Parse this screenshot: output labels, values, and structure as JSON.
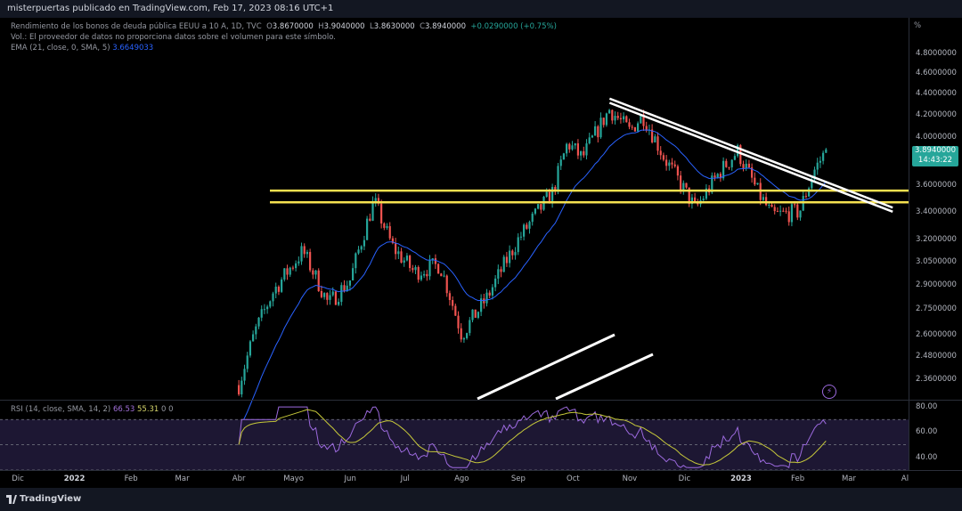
{
  "header": {
    "publisher_line": "misterpuertas publicado en TradingView.com, Feb 17, 2023 08:16 UTC+1"
  },
  "legend": {
    "title": "Rendimiento de los bonos de deuda pública EEUU a 10 A, 1D, TVC",
    "o_label": "O",
    "o_value": "3.8670000",
    "h_label": "H",
    "h_value": "3.9040000",
    "l_label": "L",
    "l_value": "3.8630000",
    "c_label": "C",
    "c_value": "3.8940000",
    "change": "+0.0290000 (+0.75%)",
    "vol_note": "Vol.: El proveedor de datos no proporciona datos sobre el volumen para este símbolo.",
    "ema_label": "EMA (21, close, 0, SMA, 5)",
    "ema_value": "3.6649033"
  },
  "rsi_legend": {
    "label": "RSI (14, close, SMA, 14, 2)",
    "rsi_value": "66.53",
    "sma_value": "55.31",
    "z1": "0",
    "z2": "0"
  },
  "price_scale": {
    "unit": "%",
    "current_price": "3.8940000",
    "countdown": "14:43:22"
  },
  "footer": {
    "brand": "TradingView"
  },
  "icons": {
    "alert": "lightning-icon",
    "brand": "tradingview-logo-icon"
  },
  "colors": {
    "up": "#26a69a",
    "down": "#ef5350",
    "ema": "#2962ff",
    "support": "#f5e150",
    "trendline": "#ffffff",
    "rsi": "#9c6ade",
    "rsi_ma": "#c7c93a"
  },
  "chart_data": [
    {
      "type": "candlestick",
      "interval": "1D",
      "y_scale": "log",
      "y_ticks": [
        "4.8000000",
        "4.6000000",
        "4.4000000",
        "4.2000000",
        "4.0000000",
        "3.6000000",
        "3.4000000",
        "3.2000000",
        "3.0500000",
        "2.9000000",
        "2.7500000",
        "2.6000000",
        "2.4800000",
        "2.3600000"
      ],
      "x_ticks": [
        "Dic",
        "2022",
        "Feb",
        "Mar",
        "Abr",
        "Mayo",
        "Jun",
        "Jul",
        "Ago",
        "Sep",
        "Oct",
        "Nov",
        "Dic",
        "2023",
        "Feb",
        "Mar",
        "Al"
      ],
      "x_range": [
        "2021-12",
        "2023-03"
      ],
      "y_range": [
        2.3,
        4.9
      ],
      "path_points": [
        [
          "2022-04-01",
          2.33
        ],
        [
          "2022-04-10",
          2.62
        ],
        [
          "2022-04-20",
          2.86
        ],
        [
          "2022-05-06",
          3.12
        ],
        [
          "2022-05-20",
          2.78
        ],
        [
          "2022-06-01",
          2.93
        ],
        [
          "2022-06-14",
          3.48
        ],
        [
          "2022-06-24",
          3.15
        ],
        [
          "2022-07-06",
          2.98
        ],
        [
          "2022-07-20",
          3.03
        ],
        [
          "2022-08-01",
          2.6
        ],
        [
          "2022-08-15",
          2.82
        ],
        [
          "2022-09-01",
          3.2
        ],
        [
          "2022-09-20",
          3.55
        ],
        [
          "2022-09-28",
          3.95
        ],
        [
          "2022-10-06",
          3.82
        ],
        [
          "2022-10-21",
          4.25
        ],
        [
          "2022-11-01",
          4.05
        ],
        [
          "2022-11-08",
          4.2
        ],
        [
          "2022-11-20",
          3.82
        ],
        [
          "2022-12-07",
          3.42
        ],
        [
          "2022-12-20",
          3.7
        ],
        [
          "2022-12-30",
          3.88
        ],
        [
          "2023-01-10",
          3.55
        ],
        [
          "2023-01-18",
          3.37
        ],
        [
          "2023-02-02",
          3.4
        ],
        [
          "2023-02-10",
          3.72
        ],
        [
          "2023-02-17",
          3.894
        ]
      ],
      "series": [
        {
          "name": "EMA (21, close, 0, SMA, 5)",
          "last": 3.6649033
        }
      ],
      "last_close": 3.894,
      "annotations": [
        {
          "kind": "horizontal-band",
          "levels": [
            3.47,
            3.56
          ]
        },
        {
          "kind": "descending-trendline",
          "from": [
            "2022-10-21",
            4.35
          ],
          "to": [
            "2023-03-25",
            3.43
          ]
        },
        {
          "kind": "descending-trendline",
          "from": [
            "2022-10-21",
            4.31
          ],
          "to": [
            "2023-03-25",
            3.4
          ]
        }
      ]
    },
    {
      "type": "line",
      "title": "RSI (14, close, SMA, 14, 2)",
      "y_ticks": [
        "80.00",
        "60.00",
        "40.00"
      ],
      "y_range": [
        30,
        85
      ],
      "bands": [
        70,
        50,
        30
      ],
      "series": [
        {
          "name": "RSI",
          "last": 66.53
        },
        {
          "name": "SMA",
          "last": 55.31
        }
      ]
    }
  ]
}
